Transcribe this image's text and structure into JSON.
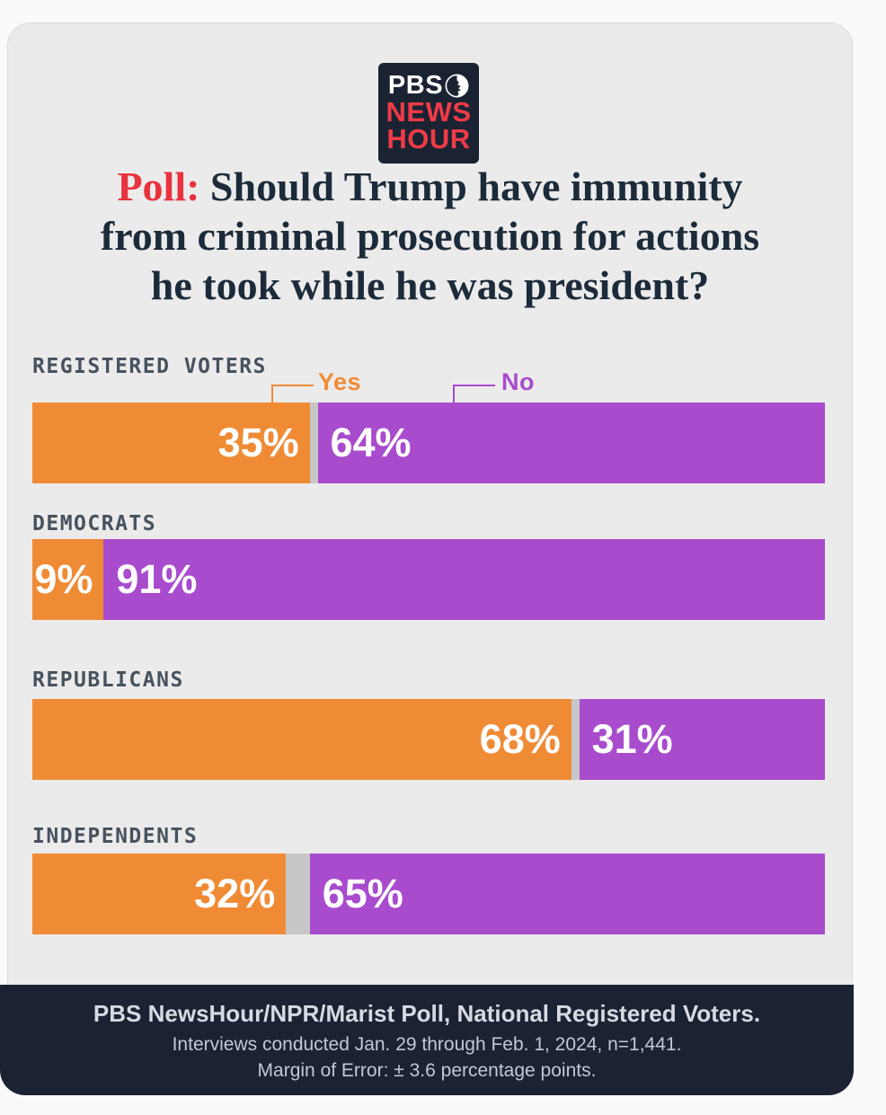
{
  "logo": {
    "pbs": "PBS",
    "news": "NEWS",
    "hour": "HOUR"
  },
  "title": {
    "prefix": "Poll:",
    "lines": [
      "Should Trump have immunity",
      "from criminal prosecution for actions",
      "he took while he was president?"
    ]
  },
  "legend": {
    "yes": "Yes",
    "no": "No"
  },
  "colors": {
    "yes": "#F08B35",
    "no": "#A84BCD",
    "gap": "#C7C7C7",
    "navy": "#1B2332",
    "card_bg": "#ECEBEB",
    "title_navy": "#1C2B3A",
    "title_red": "#E8323E",
    "logo_red": "#EF3B47",
    "label_slate": "#47525F"
  },
  "groups": [
    {
      "label": "REGISTERED VOTERS",
      "yes": 35,
      "no": 64,
      "yes_label": "35%",
      "no_label": "64%"
    },
    {
      "label": "DEMOCRATS",
      "yes": 9,
      "no": 91,
      "yes_label": "9%",
      "no_label": "91%"
    },
    {
      "label": "REPUBLICANS",
      "yes": 68,
      "no": 31,
      "yes_label": "68%",
      "no_label": "31%"
    },
    {
      "label": "INDEPENDENTS",
      "yes": 32,
      "no": 65,
      "yes_label": "32%",
      "no_label": "65%"
    }
  ],
  "footer": {
    "line1": "PBS NewsHour/NPR/Marist Poll, National Registered Voters.",
    "line2": "Interviews conducted Jan. 29 through Feb. 1, 2024, n=1,441.",
    "line3": "Margin of Error: ± 3.6 percentage points."
  },
  "chart_data": {
    "type": "bar",
    "subtype": "stacked-horizontal",
    "title": "Poll: Should Trump have immunity from criminal prosecution for actions he took while he was president?",
    "categories": [
      "REGISTERED VOTERS",
      "DEMOCRATS",
      "REPUBLICANS",
      "INDEPENDENTS"
    ],
    "series": [
      {
        "name": "Yes",
        "color": "#F08B35",
        "values": [
          35,
          9,
          68,
          32
        ]
      },
      {
        "name": "No",
        "color": "#A84BCD",
        "values": [
          64,
          91,
          31,
          65
        ]
      }
    ],
    "unit": "percent",
    "xlim": [
      0,
      100
    ],
    "legend_position": "top",
    "grid": false,
    "source": "PBS NewsHour/NPR/Marist Poll, National Registered Voters.",
    "notes": [
      "Interviews conducted Jan. 29 through Feb. 1, 2024, n=1,441.",
      "Margin of Error: ± 3.6 percentage points."
    ]
  }
}
